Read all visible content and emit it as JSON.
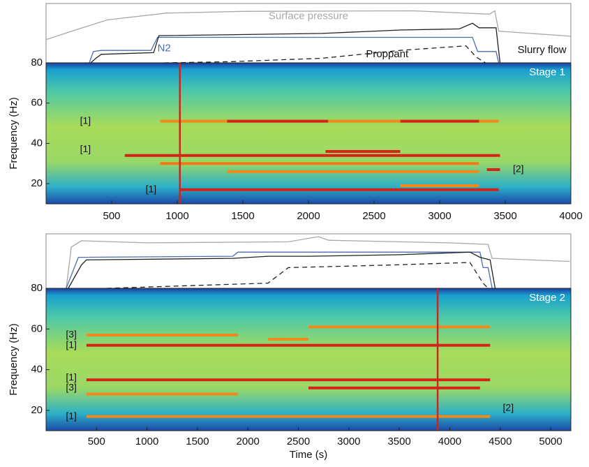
{
  "chart_data": [
    {
      "type": "spectrogram",
      "label": "Stage 1",
      "ylabel": "Frequency (Hz)",
      "xlim": [
        0,
        4000
      ],
      "xticks": [
        500,
        1000,
        1500,
        2000,
        2500,
        3000,
        3500,
        4000
      ],
      "ylim": [
        10,
        80
      ],
      "yticks": [
        20,
        40,
        60,
        80
      ],
      "events": [
        1020
      ],
      "event_color": "#c8281e",
      "bands": [
        {
          "freq": 51,
          "start": 870,
          "end": 3450,
          "color": "#f08a1a"
        },
        {
          "freq": 51,
          "start": 1380,
          "end": 2150,
          "color": "#d42418"
        },
        {
          "freq": 51,
          "start": 2700,
          "end": 3300,
          "color": "#d42418"
        },
        {
          "freq": 34,
          "start": 600,
          "end": 3460,
          "color": "#d42418"
        },
        {
          "freq": 36,
          "start": 2130,
          "end": 2700,
          "color": "#d42418"
        },
        {
          "freq": 30,
          "start": 870,
          "end": 3300,
          "color": "#f07a18"
        },
        {
          "freq": 26,
          "start": 1380,
          "end": 3300,
          "color": "#f08a1a"
        },
        {
          "freq": 17,
          "start": 1020,
          "end": 3450,
          "color": "#d42418"
        },
        {
          "freq": 19,
          "start": 2700,
          "end": 3300,
          "color": "#f08a1a"
        },
        {
          "freq": 27,
          "start": 3360,
          "end": 3460,
          "color": "#d42418"
        }
      ],
      "annotations": [
        {
          "text": "[1]",
          "x": 300,
          "y": 51
        },
        {
          "text": "[1]",
          "x": 300,
          "y": 37
        },
        {
          "text": "[1]",
          "x": 800,
          "y": 17
        },
        {
          "text": "[2]",
          "x": 3600,
          "y": 27
        }
      ],
      "traces": {
        "ylim": [
          0,
          100
        ],
        "series": [
          {
            "name": "Surface pressure",
            "color": "#a8a8a8",
            "dash": false,
            "label_at": [
              2000,
              82
            ],
            "x": [
              0,
              250,
              470,
              920,
              1500,
              2800,
              3380,
              3420,
              3450,
              4000
            ],
            "values": [
              41,
              60,
              76,
              88,
              91,
              92,
              86,
              92,
              56,
              47
            ]
          },
          {
            "name": "N2",
            "color": "#4a6bb0",
            "dash": false,
            "label_at": [
              900,
              25
            ],
            "x": [
              330,
              360,
              420,
              800,
              850,
              3250,
              3290,
              3430,
              3450
            ],
            "values": [
              0,
              20,
              22,
              22,
              45,
              45,
              20,
              20,
              0
            ]
          },
          {
            "name": "Slurry flow",
            "color": "#222222",
            "dash": false,
            "label_at": [
              3780,
              22
            ],
            "x": [
              340,
              380,
              420,
              820,
              860,
              2100,
              2700,
              3150,
              3250,
              3300,
              3430,
              3460
            ],
            "values": [
              0,
              8,
              15,
              18,
              48,
              52,
              58,
              60,
              70,
              62,
              62,
              0
            ]
          },
          {
            "name": "Proppant",
            "color": "#222222",
            "dash": true,
            "label_at": [
              2600,
              15
            ],
            "x": [
              900,
              1400,
              2100,
              2700,
              3200,
              3280,
              3350
            ],
            "values": [
              0,
              2,
              8,
              22,
              30,
              10,
              0
            ]
          }
        ]
      }
    },
    {
      "type": "spectrogram",
      "label": "Stage 2",
      "ylabel": "Frequency (Hz)",
      "xlabel": "Time (s)",
      "xlim": [
        0,
        5200
      ],
      "xticks": [
        500,
        1000,
        1500,
        2000,
        2500,
        3000,
        3500,
        4000,
        4500,
        5000
      ],
      "ylim": [
        10,
        80
      ],
      "yticks": [
        20,
        40,
        60,
        80
      ],
      "events": [
        3880
      ],
      "event_color": "#c8281e",
      "bands": [
        {
          "freq": 52,
          "start": 400,
          "end": 4400,
          "color": "#d42418"
        },
        {
          "freq": 57,
          "start": 400,
          "end": 1900,
          "color": "#f08a1a"
        },
        {
          "freq": 61,
          "start": 2600,
          "end": 4400,
          "color": "#f08a1a"
        },
        {
          "freq": 55,
          "start": 2200,
          "end": 2600,
          "color": "#f08a1a"
        },
        {
          "freq": 35,
          "start": 400,
          "end": 4400,
          "color": "#d42418"
        },
        {
          "freq": 31,
          "start": 2600,
          "end": 4300,
          "color": "#d42418"
        },
        {
          "freq": 28,
          "start": 400,
          "end": 1900,
          "color": "#f08a1a"
        },
        {
          "freq": 17,
          "start": 400,
          "end": 4400,
          "color": "#f08a1a"
        }
      ],
      "annotations": [
        {
          "text": "[3]",
          "x": 250,
          "y": 57
        },
        {
          "text": "[1]",
          "x": 250,
          "y": 52
        },
        {
          "text": "[1]",
          "x": 250,
          "y": 36
        },
        {
          "text": "[3]",
          "x": 250,
          "y": 31
        },
        {
          "text": "[1]",
          "x": 250,
          "y": 17
        },
        {
          "text": "[2]",
          "x": 4580,
          "y": 21
        }
      ],
      "traces": {
        "ylim": [
          0,
          100
        ],
        "series": [
          {
            "color": "#a8a8a8",
            "dash": false,
            "x": [
              200,
              250,
              350,
              1000,
              2400,
              2700,
              2800,
              4000,
              4380,
              4420,
              5190
            ],
            "values": [
              0,
              80,
              92,
              88,
              90,
              100,
              93,
              88,
              85,
              58,
              52
            ]
          },
          {
            "color": "#4a6bb0",
            "dash": false,
            "x": [
              200,
              280,
              320,
              1850,
              1900,
              2200,
              4300,
              4330,
              4380,
              4420
            ],
            "values": [
              0,
              40,
              60,
              62,
              70,
              70,
              70,
              40,
              40,
              0
            ]
          },
          {
            "color": "#222222",
            "dash": false,
            "x": [
              220,
              350,
              400,
              1850,
              2200,
              2600,
              3500,
              4200,
              4300,
              4400,
              4450
            ],
            "values": [
              0,
              45,
              55,
              58,
              62,
              62,
              65,
              70,
              60,
              55,
              0
            ]
          },
          {
            "color": "#222222",
            "dash": true,
            "x": [
              600,
              2200,
              2400,
              3400,
              4200,
              4330,
              4380
            ],
            "values": [
              0,
              10,
              40,
              45,
              50,
              10,
              0
            ]
          }
        ]
      }
    }
  ]
}
